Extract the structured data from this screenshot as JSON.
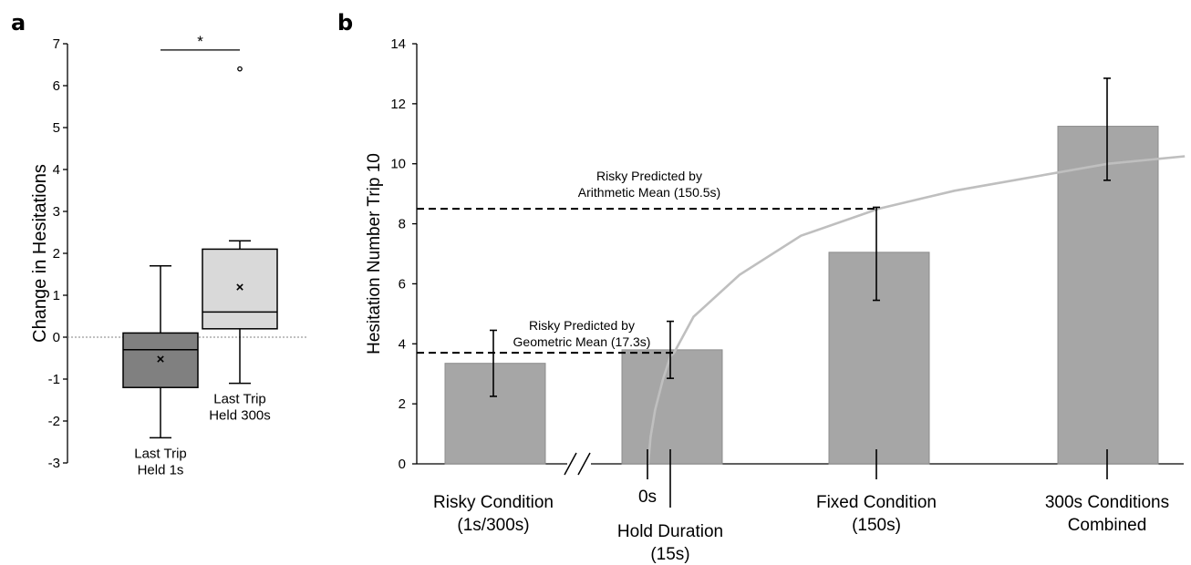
{
  "panels": {
    "a_letter": "a",
    "b_letter": "b"
  },
  "chart_data": [
    {
      "type": "box",
      "panel": "a",
      "ylabel": "Change in Hesitations",
      "ylim": [
        -3,
        7
      ],
      "yticks": [
        -3,
        -2,
        -1,
        0,
        1,
        2,
        3,
        4,
        5,
        6,
        7
      ],
      "reference_line_y": 0,
      "boxes": [
        {
          "name": "Last Trip Held 1s",
          "label_lines": [
            "Last Trip",
            "Held 1s"
          ],
          "min": -2.4,
          "q1": -1.2,
          "median": -0.3,
          "q3": 0.1,
          "max": 1.7,
          "mean": -0.52,
          "outliers": [],
          "fill": "#808080"
        },
        {
          "name": "Last Trip Held 300s",
          "label_lines": [
            "Last Trip",
            "Held 300s"
          ],
          "min": -1.1,
          "q1": 0.2,
          "median": 0.6,
          "q3": 2.1,
          "max": 2.3,
          "mean": 1.2,
          "outliers": [
            6.4
          ],
          "fill": "#d9d9d9"
        }
      ],
      "significance": {
        "label": "*",
        "between": [
          0,
          1
        ],
        "y": 6.85
      }
    },
    {
      "type": "bar",
      "panel": "b",
      "ylabel": "Hesitation Number Trip 10",
      "ylim": [
        0,
        14
      ],
      "yticks": [
        0,
        2,
        4,
        6,
        8,
        10,
        12,
        14
      ],
      "categories": [
        "Risky Condition (1s/300s)",
        "Hold Duration 15s",
        "Fixed Condition (150s)",
        "300s Conditions Combined"
      ],
      "values": [
        3.35,
        3.8,
        7.05,
        11.25
      ],
      "error_low": [
        2.25,
        2.85,
        5.45,
        9.45
      ],
      "error_high": [
        4.45,
        4.75,
        8.55,
        12.85
      ],
      "bar_color": "#a6a6a6",
      "hold_duration_axis_seconds": [
        0,
        15,
        150,
        300
      ],
      "fitted_curve": {
        "type": "logarithmic",
        "color": "#bfbfbf",
        "x_seconds": [
          1,
          2,
          5,
          10,
          15,
          17.3,
          30,
          60,
          100,
          150.5,
          200,
          300,
          350
        ],
        "y": [
          0.3,
          0.9,
          1.8,
          2.8,
          3.6,
          3.7,
          4.9,
          6.3,
          7.6,
          8.5,
          9.1,
          10.0,
          10.25
        ]
      },
      "reference_lines": [
        {
          "y": 8.5,
          "label_lines": [
            "Risky Predicted by",
            "Arithmetic Mean (150.5s)"
          ],
          "x_seconds_end": 150.5
        },
        {
          "y": 3.7,
          "label_lines": [
            "Risky Predicted by",
            "Geometric Mean (17.3s)"
          ],
          "x_seconds_end": 17.3
        }
      ],
      "x_labels": [
        {
          "lines": [
            "Risky Condition",
            "(1s/300s)"
          ]
        },
        {
          "lines": [
            "0s"
          ]
        },
        {
          "lines": [
            "Hold Duration",
            "(15s)"
          ]
        },
        {
          "lines": [
            "Fixed Condition",
            "(150s)"
          ]
        },
        {
          "lines": [
            "300s Conditions",
            "Combined"
          ]
        }
      ],
      "axis_break": true
    }
  ]
}
